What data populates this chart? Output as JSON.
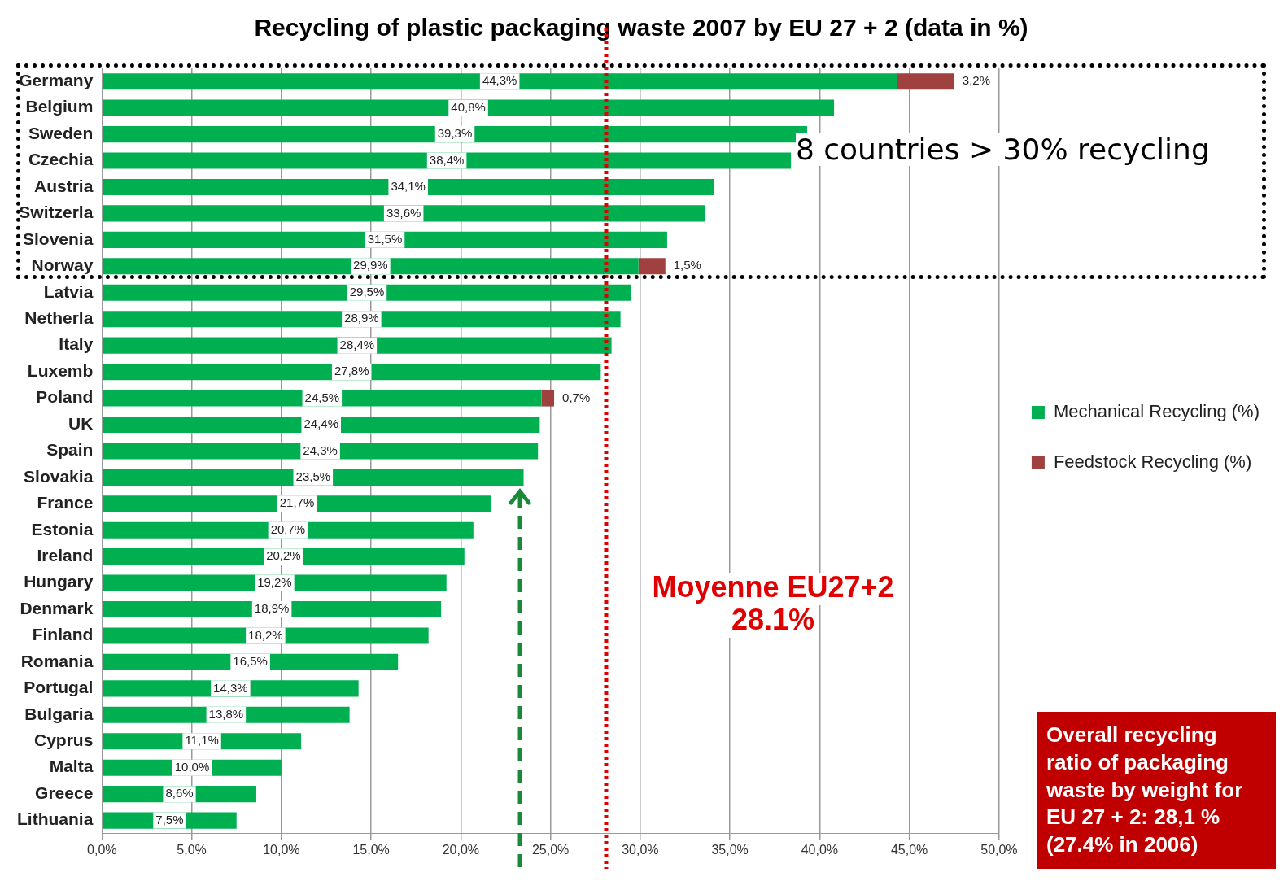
{
  "chart_data": {
    "type": "bar",
    "orientation": "horizontal",
    "stacked": true,
    "title": "Recycling of plastic packaging waste 2007 by EU 27 + 2 (data in %)",
    "categories": [
      "Germany",
      "Belgium",
      "Sweden",
      "Czechia",
      "Austria",
      "Switzerla",
      "Slovenia",
      "Norway",
      "Latvia",
      "Netherla",
      "Italy",
      "Luxemb",
      "Poland",
      "UK",
      "Spain",
      "Slovakia",
      "France",
      "Estonia",
      "Ireland",
      "Hungary",
      "Denmark",
      "Finland",
      "Romania",
      "Portugal",
      "Bulgaria",
      "Cyprus",
      "Malta",
      "Greece",
      "Lithuania"
    ],
    "series": [
      {
        "name": "Mechanical Recycling (%)",
        "color": "#00b050",
        "values": [
          44.3,
          40.8,
          39.3,
          38.4,
          34.1,
          33.6,
          31.5,
          29.9,
          29.5,
          28.9,
          28.4,
          27.8,
          24.5,
          24.4,
          24.3,
          23.5,
          21.7,
          20.7,
          20.2,
          19.2,
          18.9,
          18.2,
          16.5,
          14.3,
          13.8,
          11.1,
          10.0,
          8.6,
          7.5
        ],
        "value_labels": [
          "44,3%",
          "40,8%",
          "39,3%",
          "38,4%",
          "34,1%",
          "33,6%",
          "31,5%",
          "29,9%",
          "29,5%",
          "28,9%",
          "28,4%",
          "27,8%",
          "24,5%",
          "24,4%",
          "24,3%",
          "23,5%",
          "21,7%",
          "20,7%",
          "20,2%",
          "19,2%",
          "18,9%",
          "18,2%",
          "16,5%",
          "14,3%",
          "13,8%",
          "11,1%",
          "10,0%",
          "8,6%",
          "7,5%"
        ]
      },
      {
        "name": "Feedstock Recycling (%)",
        "color": "#a0403f",
        "values": [
          3.2,
          null,
          null,
          null,
          null,
          null,
          null,
          1.5,
          null,
          null,
          null,
          null,
          0.7,
          null,
          null,
          null,
          null,
          null,
          null,
          null,
          null,
          null,
          null,
          null,
          null,
          null,
          null,
          null,
          null
        ],
        "value_labels": [
          "3,2%",
          null,
          null,
          null,
          null,
          null,
          null,
          "1,5%",
          null,
          null,
          null,
          null,
          "0,7%",
          null,
          null,
          null,
          null,
          null,
          null,
          null,
          null,
          null,
          null,
          null,
          null,
          null,
          null,
          null,
          null
        ]
      }
    ],
    "xlim": [
      0,
      50
    ],
    "xticks": [
      {
        "value": 0,
        "label": "0,0%"
      },
      {
        "value": 5,
        "label": "5,0%"
      },
      {
        "value": 10,
        "label": "10,0%"
      },
      {
        "value": 15,
        "label": "15,0%"
      },
      {
        "value": 20,
        "label": "20,0%"
      },
      {
        "value": 25,
        "label": "25,0%"
      },
      {
        "value": 30,
        "label": "30,0%"
      },
      {
        "value": 35,
        "label": "35,0%"
      },
      {
        "value": 40,
        "label": "40,0%"
      },
      {
        "value": 45,
        "label": "45,0%"
      },
      {
        "value": 50,
        "label": "50,0%"
      }
    ],
    "grid": "x",
    "legend": "right",
    "ref_lines": [
      {
        "axis": "x",
        "value": 28.1,
        "label": "Moyenne EU27+2\n28.1%",
        "color": "#e00000",
        "line_style": "dotted"
      }
    ],
    "annotations": [
      "8 countries > 30% recycling",
      "Overall recycling ratio of packaging waste by weight for EU 27 + 2: 28,1 % (27.4% in 2006)"
    ]
  }
}
